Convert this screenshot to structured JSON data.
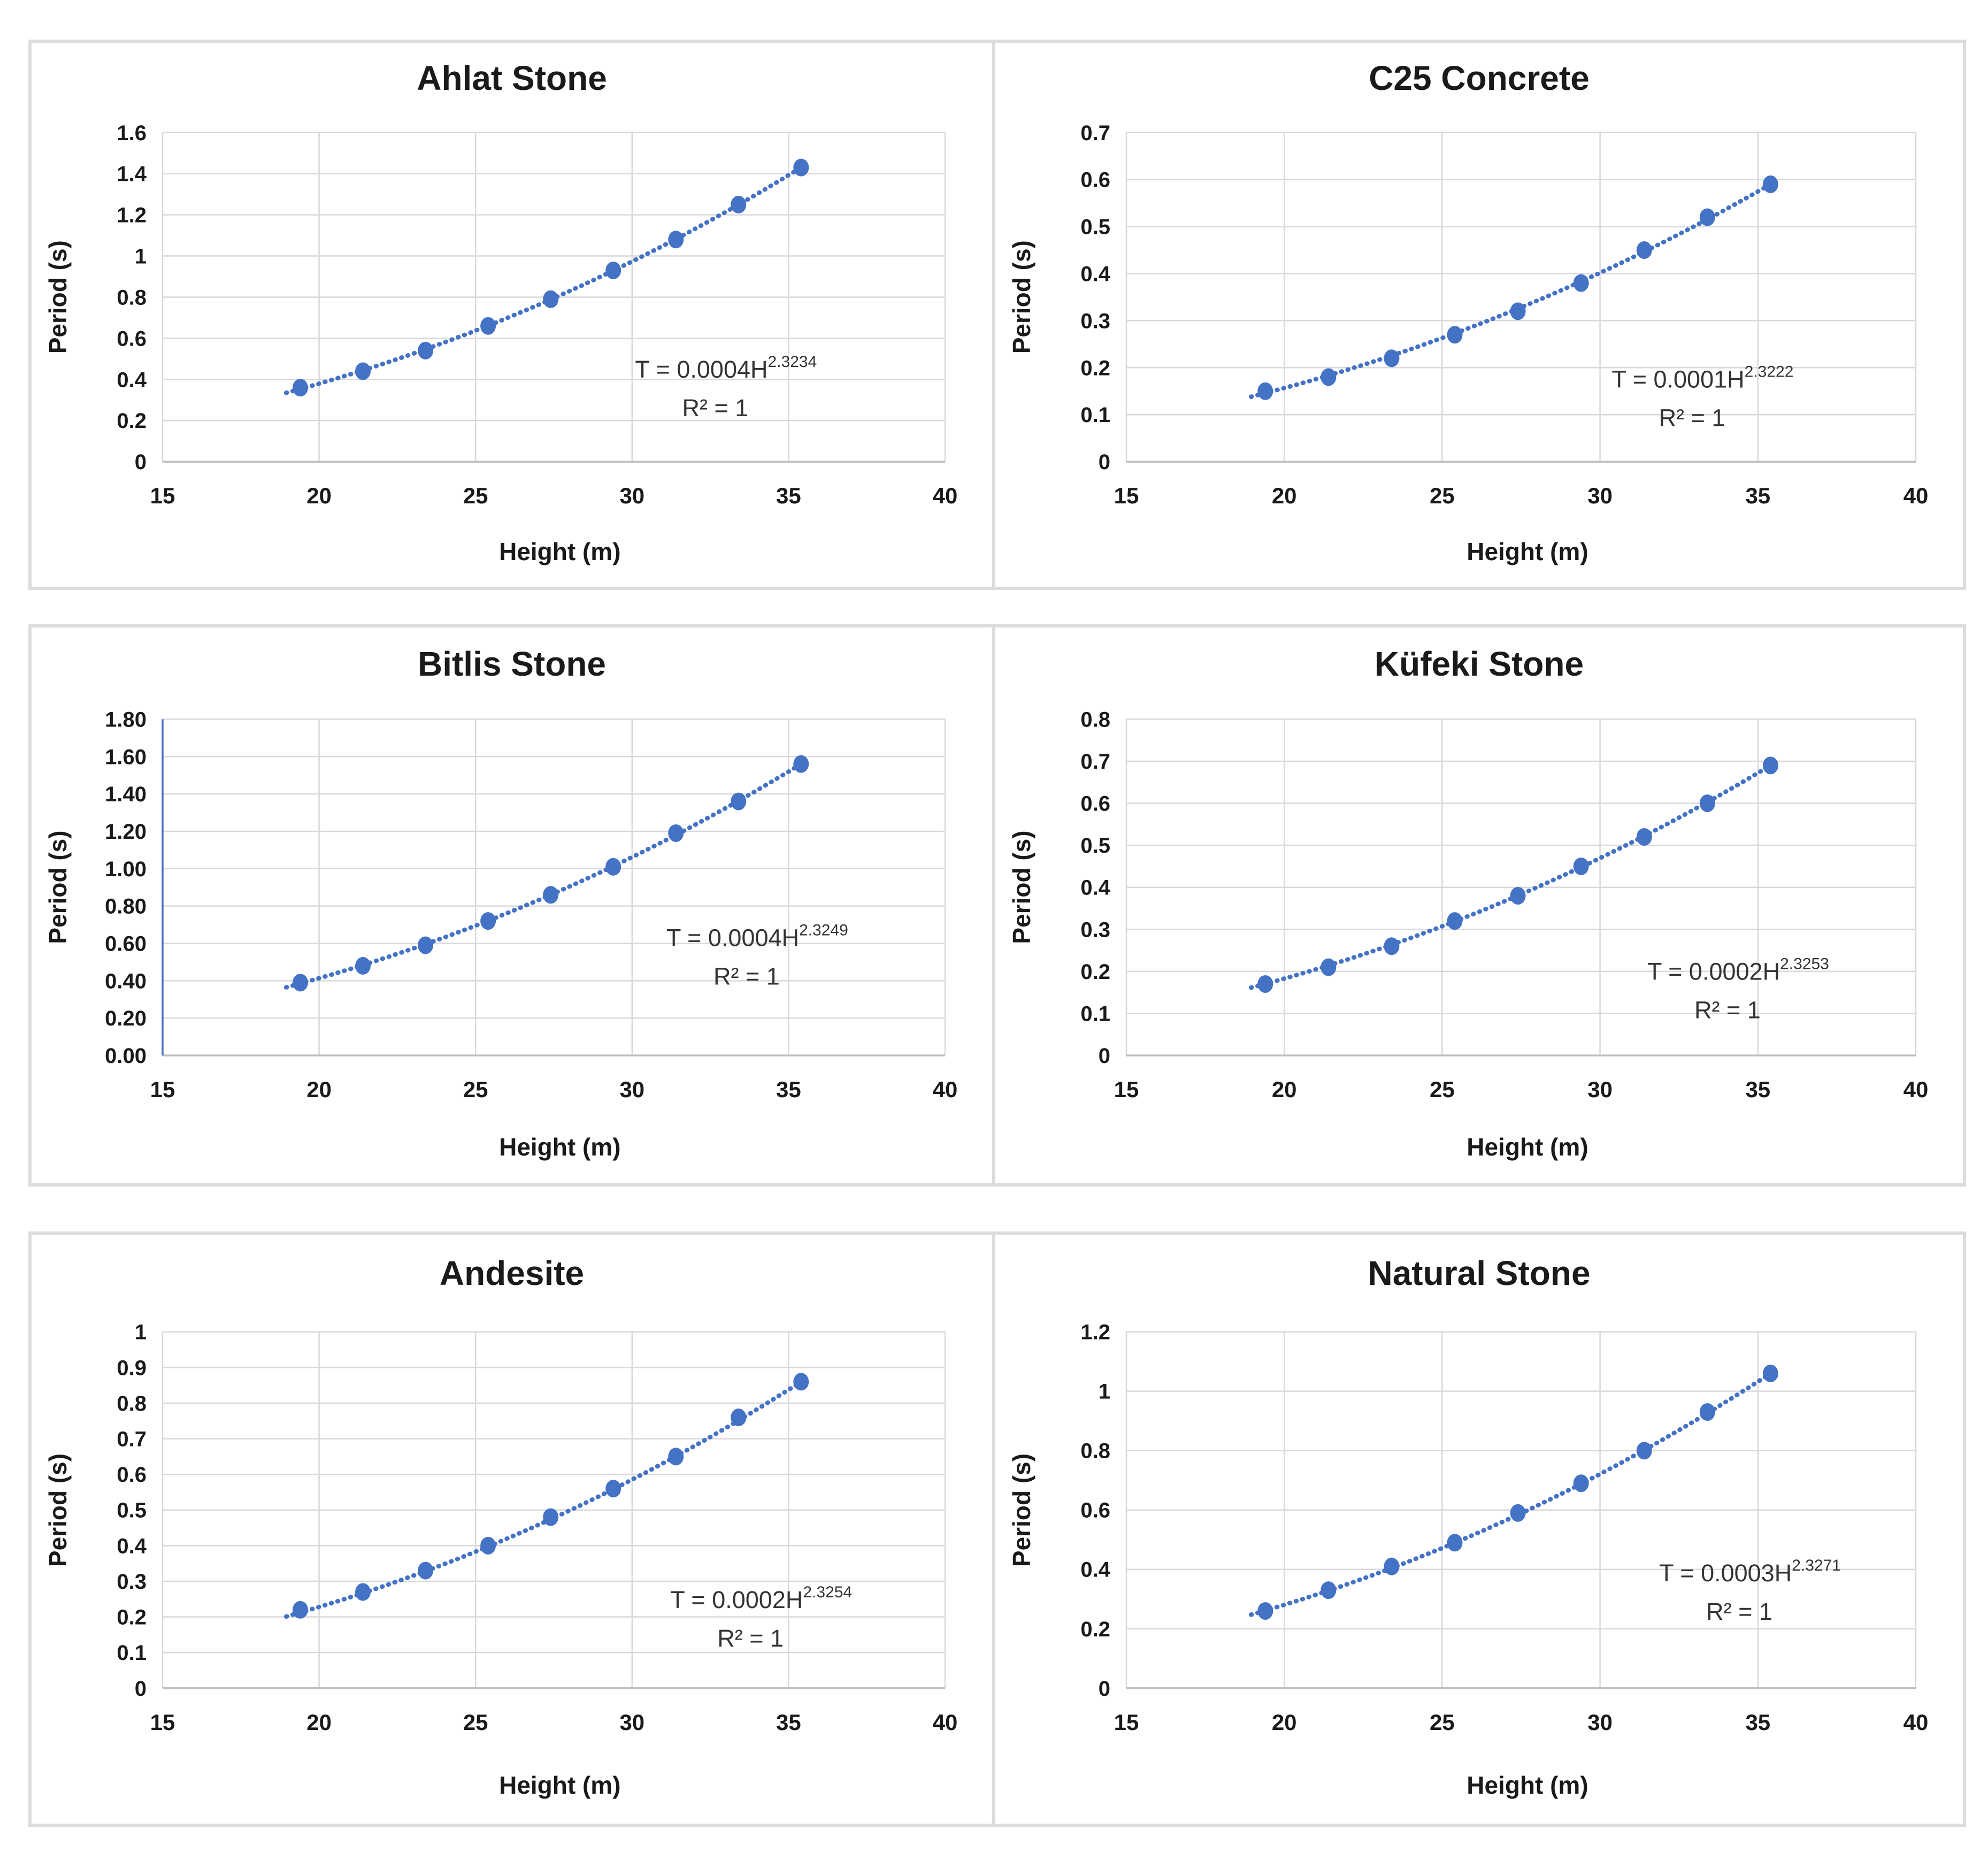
{
  "page": {
    "background": "#ffffff",
    "accent_color": "#4472C4",
    "grid_color": "#d9d9d9",
    "axis_color": "#bfbfbf",
    "text_color": "#1a1a1a",
    "equation_color": "#333333"
  },
  "chart_data": [
    {
      "type": "scatter",
      "title": "Ahlat Stone",
      "xlabel": "Height (m)",
      "ylabel": "Period (s)",
      "x": [
        19.4,
        21.4,
        23.4,
        25.4,
        27.4,
        29.4,
        31.4,
        33.4,
        35.4
      ],
      "y": [
        0.36,
        0.44,
        0.54,
        0.66,
        0.79,
        0.93,
        1.08,
        1.25,
        1.43
      ],
      "xlim": [
        15,
        40
      ],
      "ylim": [
        0,
        1.6
      ],
      "x_ticks": [
        "15",
        "20",
        "25",
        "30",
        "35",
        "40"
      ],
      "y_tick_values": [
        0,
        0.2,
        0.4,
        0.6,
        0.8,
        1.0,
        1.2,
        1.4,
        1.6
      ],
      "y_tick_labels": [
        "0",
        "0.2",
        "0.4",
        "0.6",
        "0.8",
        "1",
        "1.2",
        "1.4",
        "1.6"
      ],
      "grid": true,
      "legend": "none",
      "trendline": {
        "kind": "power",
        "exponent": 2.3234,
        "style": "dotted"
      },
      "equation": {
        "line1_prefix": "T = 0.0004H",
        "line1_exponent": "2.3234",
        "line2": "R² = 1",
        "pos": [
          0.72,
          0.745
        ]
      },
      "marker_color": "#4472C4",
      "y_axis_line": false
    },
    {
      "type": "scatter",
      "title": "C25 Concrete",
      "xlabel": "Height (m)",
      "ylabel": "Period (s)",
      "x": [
        19.4,
        21.4,
        23.4,
        25.4,
        27.4,
        29.4,
        31.4,
        33.4,
        35.4
      ],
      "y": [
        0.15,
        0.18,
        0.22,
        0.27,
        0.32,
        0.38,
        0.45,
        0.52,
        0.59
      ],
      "xlim": [
        15,
        40
      ],
      "ylim": [
        0,
        0.7
      ],
      "x_ticks": [
        "15",
        "20",
        "25",
        "30",
        "35",
        "40"
      ],
      "y_tick_values": [
        0,
        0.1,
        0.2,
        0.3,
        0.4,
        0.5,
        0.6,
        0.7
      ],
      "y_tick_labels": [
        "0",
        "0.1",
        "0.2",
        "0.3",
        "0.4",
        "0.5",
        "0.6",
        "0.7"
      ],
      "grid": true,
      "legend": "none",
      "trendline": {
        "kind": "power",
        "exponent": 2.3222,
        "style": "dotted"
      },
      "equation": {
        "line1_prefix": "T = 0.0001H",
        "line1_exponent": "2.3222",
        "line2": "R² = 1",
        "pos": [
          0.73,
          0.775
        ]
      },
      "marker_color": "#4472C4",
      "y_axis_line": false
    },
    {
      "type": "scatter",
      "title": "Bitlis Stone",
      "xlabel": "Height (m)",
      "ylabel": "Period (s)",
      "x": [
        19.4,
        21.4,
        23.4,
        25.4,
        27.4,
        29.4,
        31.4,
        33.4,
        35.4
      ],
      "y": [
        0.39,
        0.48,
        0.59,
        0.72,
        0.86,
        1.01,
        1.19,
        1.36,
        1.56
      ],
      "xlim": [
        15,
        40
      ],
      "ylim": [
        0,
        1.8
      ],
      "x_ticks": [
        "15",
        "20",
        "25",
        "30",
        "35",
        "40"
      ],
      "y_tick_values": [
        0,
        0.2,
        0.4,
        0.6,
        0.8,
        1.0,
        1.2,
        1.4,
        1.6,
        1.8
      ],
      "y_tick_labels": [
        "0.00",
        "0.20",
        "0.40",
        "0.60",
        "0.80",
        "1.00",
        "1.20",
        "1.40",
        "1.60",
        "1.80"
      ],
      "grid": true,
      "legend": "none",
      "trendline": {
        "kind": "power",
        "exponent": 2.3249,
        "style": "dotted"
      },
      "equation": {
        "line1_prefix": "T = 0.0004H",
        "line1_exponent": "2.3249",
        "line2": "R² = 1",
        "pos": [
          0.76,
          0.675
        ]
      },
      "marker_color": "#4472C4",
      "y_axis_line": true
    },
    {
      "type": "scatter",
      "title": "Küfeki Stone",
      "xlabel": "Height (m)",
      "ylabel": "Period (s)",
      "x": [
        19.4,
        21.4,
        23.4,
        25.4,
        27.4,
        29.4,
        31.4,
        33.4,
        35.4
      ],
      "y": [
        0.17,
        0.21,
        0.26,
        0.32,
        0.38,
        0.45,
        0.52,
        0.6,
        0.69
      ],
      "xlim": [
        15,
        40
      ],
      "ylim": [
        0,
        0.8
      ],
      "x_ticks": [
        "15",
        "20",
        "25",
        "30",
        "35",
        "40"
      ],
      "y_tick_values": [
        0,
        0.1,
        0.2,
        0.3,
        0.4,
        0.5,
        0.6,
        0.7,
        0.8
      ],
      "y_tick_labels": [
        "0",
        "0.1",
        "0.2",
        "0.3",
        "0.4",
        "0.5",
        "0.6",
        "0.7",
        "0.8"
      ],
      "grid": true,
      "legend": "none",
      "trendline": {
        "kind": "power",
        "exponent": 2.3253,
        "style": "dotted"
      },
      "equation": {
        "line1_prefix": "T = 0.0002H",
        "line1_exponent": "2.3253",
        "line2": "R² = 1",
        "pos": [
          0.775,
          0.775
        ]
      },
      "marker_color": "#4472C4",
      "y_axis_line": false
    },
    {
      "type": "scatter",
      "title": "Andesite",
      "xlabel": "Height (m)",
      "ylabel": "Period (s)",
      "x": [
        19.4,
        21.4,
        23.4,
        25.4,
        27.4,
        29.4,
        31.4,
        33.4,
        35.4
      ],
      "y": [
        0.22,
        0.27,
        0.33,
        0.4,
        0.48,
        0.56,
        0.65,
        0.76,
        0.86
      ],
      "xlim": [
        15,
        40
      ],
      "ylim": [
        0,
        1.0
      ],
      "x_ticks": [
        "15",
        "20",
        "25",
        "30",
        "35",
        "40"
      ],
      "y_tick_values": [
        0,
        0.1,
        0.2,
        0.3,
        0.4,
        0.5,
        0.6,
        0.7,
        0.8,
        0.9,
        1.0
      ],
      "y_tick_labels": [
        "0",
        "0.1",
        "0.2",
        "0.3",
        "0.4",
        "0.5",
        "0.6",
        "0.7",
        "0.8",
        "0.9",
        "1"
      ],
      "grid": true,
      "legend": "none",
      "trendline": {
        "kind": "power",
        "exponent": 2.3254,
        "style": "dotted"
      },
      "equation": {
        "line1_prefix": "T = 0.0002H",
        "line1_exponent": "2.3254",
        "line2": "R² = 1",
        "pos": [
          0.765,
          0.775
        ]
      },
      "marker_color": "#4472C4",
      "y_axis_line": false
    },
    {
      "type": "scatter",
      "title": "Natural Stone",
      "xlabel": "Height (m)",
      "ylabel": "Period (s)",
      "x": [
        19.4,
        21.4,
        23.4,
        25.4,
        27.4,
        29.4,
        31.4,
        33.4,
        35.4
      ],
      "y": [
        0.26,
        0.33,
        0.41,
        0.49,
        0.59,
        0.69,
        0.8,
        0.93,
        1.06
      ],
      "xlim": [
        15,
        40
      ],
      "ylim": [
        0,
        1.2
      ],
      "x_ticks": [
        "15",
        "20",
        "25",
        "30",
        "35",
        "40"
      ],
      "y_tick_values": [
        0,
        0.2,
        0.4,
        0.6,
        0.8,
        1.0,
        1.2
      ],
      "y_tick_labels": [
        "0",
        "0.2",
        "0.4",
        "0.6",
        "0.8",
        "1",
        "1.2"
      ],
      "grid": true,
      "legend": "none",
      "trendline": {
        "kind": "power",
        "exponent": 2.3271,
        "style": "dotted"
      },
      "equation": {
        "line1_prefix": "T = 0.0003H",
        "line1_exponent": "2.3271",
        "line2": "R² = 1",
        "pos": [
          0.79,
          0.7
        ]
      },
      "marker_color": "#4472C4",
      "y_axis_line": false
    }
  ]
}
